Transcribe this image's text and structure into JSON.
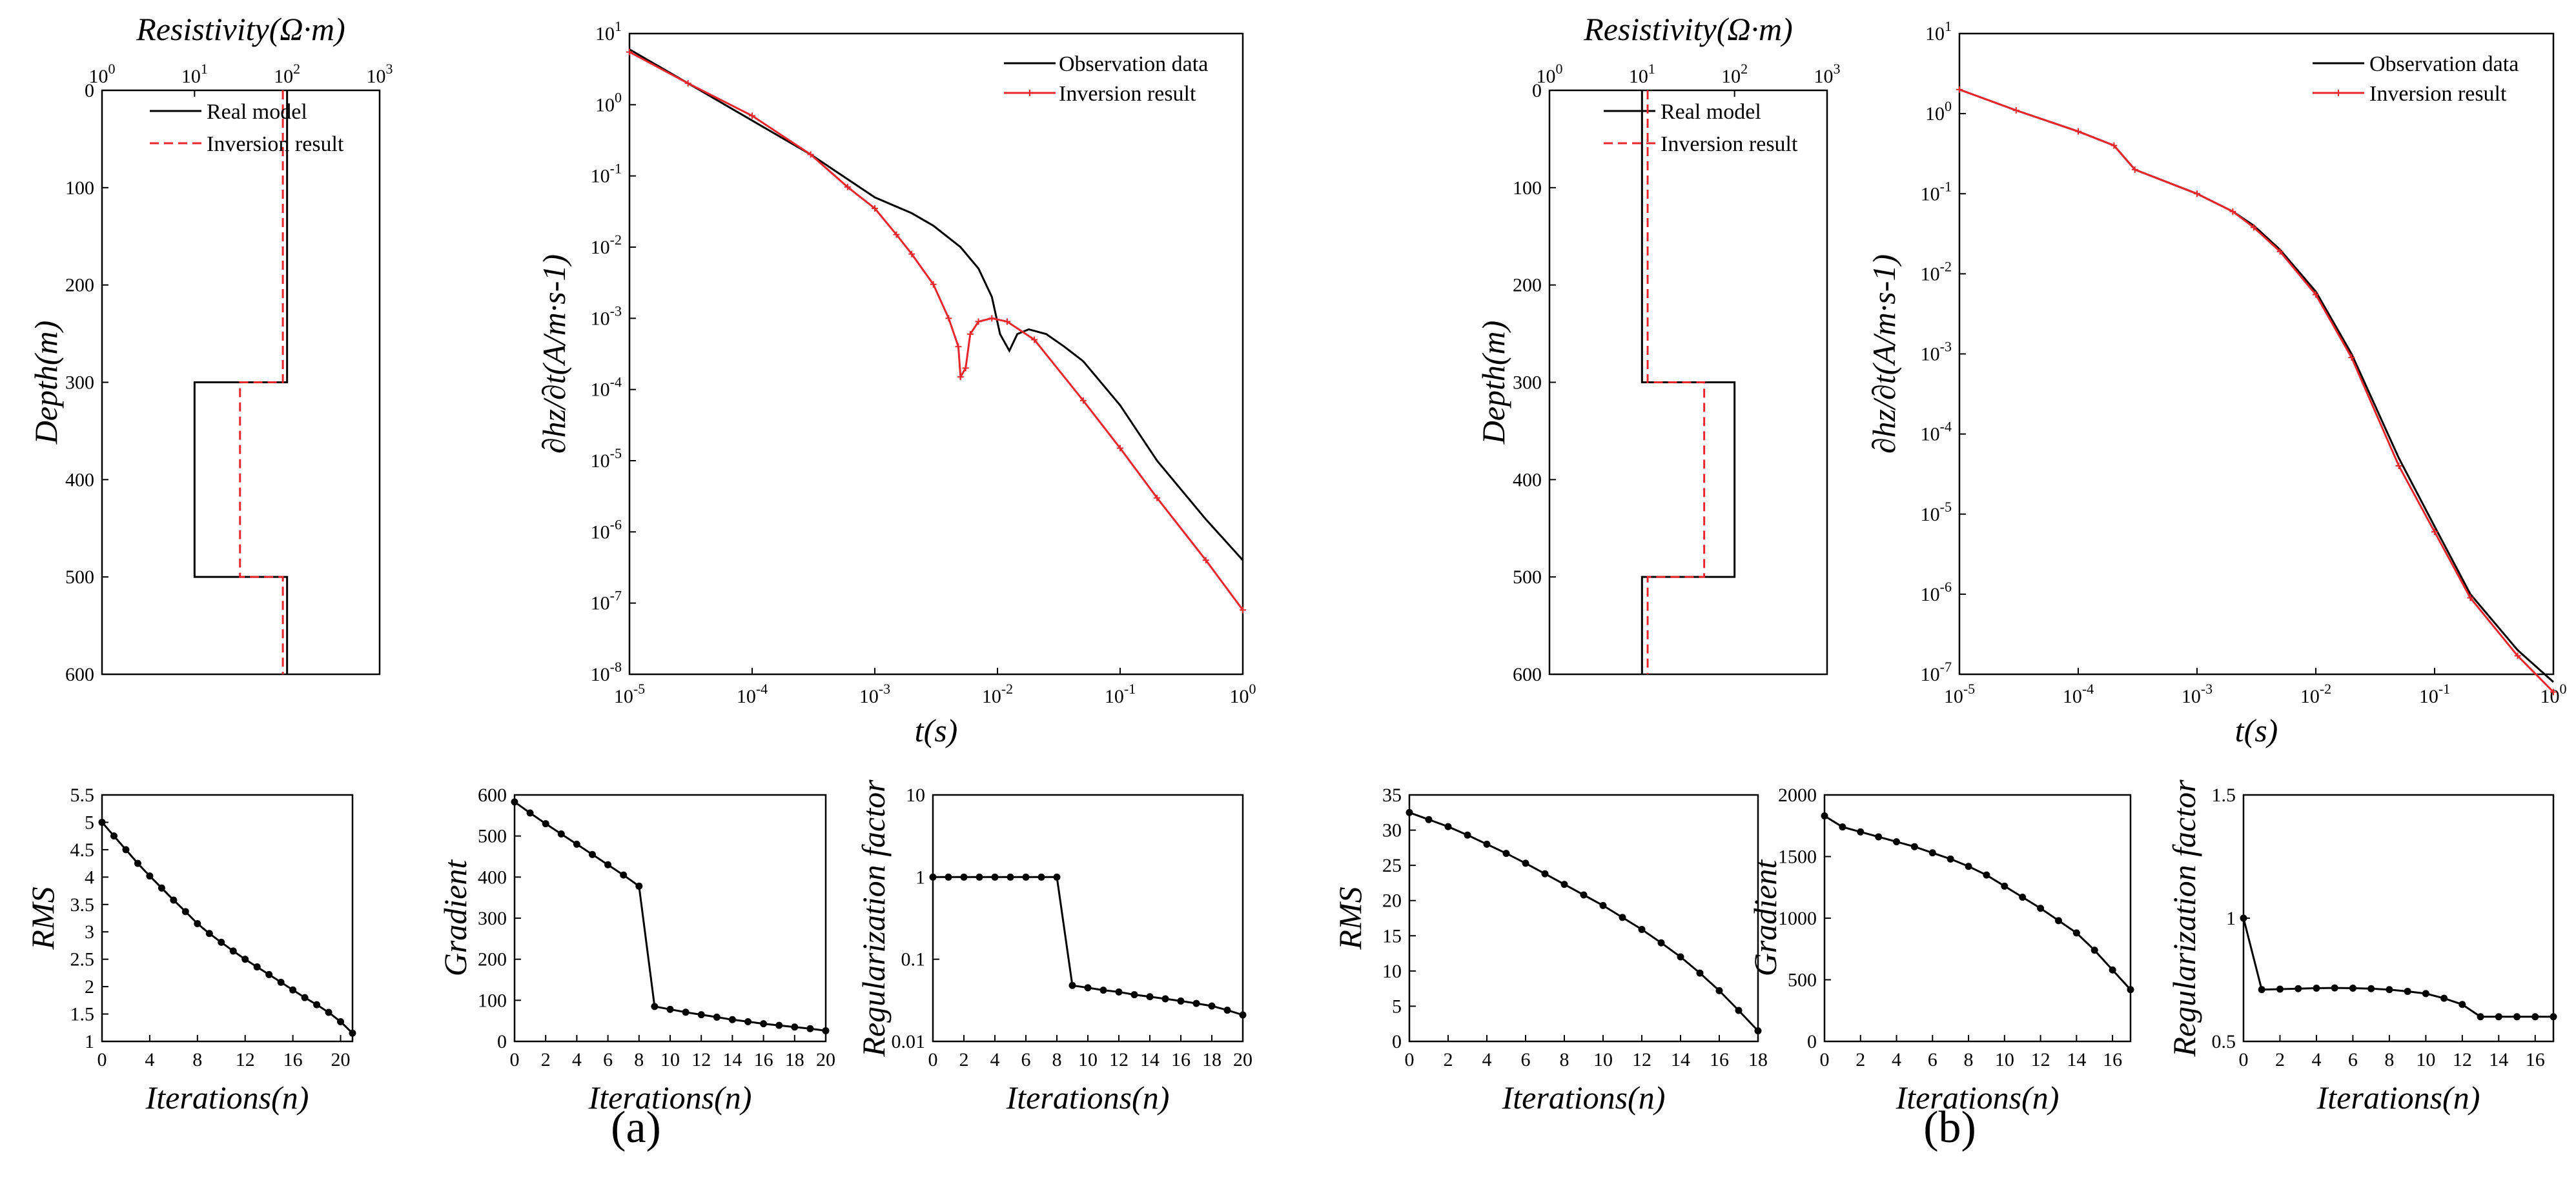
{
  "figure_labels": {
    "a": "(a)",
    "b": "(b)"
  },
  "axis_labels": {
    "resistivity": "Resistivity(Ω·m)",
    "depth": "Depth(m)",
    "dhz": "∂hz/∂t(A/m·s-1)",
    "time": "t(s)",
    "rms": "RMS",
    "gradient": "Gradient",
    "regularization": "Regularization factor",
    "iterations": "Iterations(n)"
  },
  "legends": {
    "real_model": "Real model",
    "inversion_result": "Inversion result",
    "observation_data": "Observation data"
  },
  "colors": {
    "observed": "#000000",
    "inverted": "#e8262c",
    "marker": "#000000"
  },
  "chart_data": [
    {
      "id": "a_model",
      "panel": "a",
      "type": "line",
      "title": "",
      "xlabel": "Resistivity(Ω·m)",
      "ylabel": "Depth(m)",
      "xscale": "log",
      "xlim": [
        1,
        1000
      ],
      "ylim": [
        0,
        600
      ],
      "y_inverted": true,
      "xtick_labels": [
        "10^0",
        "10^1",
        "10^2",
        "10^3"
      ],
      "ytick_labels": [
        "0",
        "100",
        "200",
        "300",
        "400",
        "500",
        "600"
      ],
      "legend_position": "top-left",
      "series": [
        {
          "name": "Real model",
          "style": "solid",
          "steps": [
            {
              "depth_from": 0,
              "depth_to": 300,
              "resistivity": 100
            },
            {
              "depth_from": 300,
              "depth_to": 500,
              "resistivity": 10
            },
            {
              "depth_from": 500,
              "depth_to": 600,
              "resistivity": 100
            }
          ]
        },
        {
          "name": "Inversion result",
          "style": "dashed",
          "steps": [
            {
              "depth_from": 0,
              "depth_to": 300,
              "resistivity": 90
            },
            {
              "depth_from": 300,
              "depth_to": 500,
              "resistivity": 31
            },
            {
              "depth_from": 500,
              "depth_to": 600,
              "resistivity": 90
            }
          ]
        }
      ]
    },
    {
      "id": "a_response",
      "panel": "a",
      "type": "line",
      "title": "",
      "xlabel": "t(s)",
      "ylabel": "∂hz/∂t(A/m·s-1)",
      "xscale": "log",
      "yscale": "log",
      "xlim": [
        1e-05,
        1
      ],
      "ylim": [
        1e-08,
        10
      ],
      "xtick_labels": [
        "10^-5",
        "10^-4",
        "10^-3",
        "10^-2",
        "10^-1",
        "10^0"
      ],
      "ytick_labels": [
        "10^-8",
        "10^-7",
        "10^-6",
        "10^-5",
        "10^-4",
        "10^-3",
        "10^-2",
        "10^-1",
        "10^0",
        "10^1"
      ],
      "legend_position": "top-right",
      "series": [
        {
          "name": "Observation data",
          "style": "solid",
          "markers": false,
          "x": [
            1e-05,
            3e-05,
            0.0001,
            0.0003,
            0.001,
            0.002,
            0.003,
            0.005,
            0.007,
            0.009,
            0.0105,
            0.0125,
            0.0145,
            0.018,
            0.025,
            0.035,
            0.05,
            0.1,
            0.2,
            0.5,
            1
          ],
          "y": [
            6,
            2,
            0.6,
            0.2,
            0.05,
            0.03,
            0.02,
            0.01,
            0.005,
            0.002,
            0.0006,
            0.00035,
            0.0006,
            0.0007,
            0.0006,
            0.0004,
            0.00025,
            6e-05,
            1e-05,
            1.5e-06,
            4e-07
          ]
        },
        {
          "name": "Inversion result",
          "style": "solid",
          "markers": true,
          "x": [
            1e-05,
            3e-05,
            0.0001,
            0.0003,
            0.0006,
            0.001,
            0.0015,
            0.002,
            0.003,
            0.004,
            0.0048,
            0.005,
            0.0055,
            0.006,
            0.007,
            0.009,
            0.012,
            0.02,
            0.05,
            0.1,
            0.2,
            0.5,
            1
          ],
          "y": [
            5.5,
            2,
            0.7,
            0.2,
            0.07,
            0.035,
            0.015,
            0.008,
            0.003,
            0.001,
            0.0004,
            0.00015,
            0.0002,
            0.0006,
            0.0009,
            0.001,
            0.0009,
            0.0005,
            7e-05,
            1.5e-05,
            3e-06,
            4e-07,
            8e-08
          ]
        }
      ]
    },
    {
      "id": "a_rms",
      "panel": "a",
      "type": "line",
      "xlabel": "Iterations(n)",
      "ylabel": "RMS",
      "xlim": [
        0,
        21
      ],
      "ylim": [
        1,
        5.5
      ],
      "xtick_labels": [
        "0",
        "4",
        "8",
        "12",
        "16",
        "20"
      ],
      "ytick_labels": [
        "1",
        "1.5",
        "2",
        "2.5",
        "3",
        "3.5",
        "4",
        "4.5",
        "5",
        "5.5"
      ],
      "series": [
        {
          "name": "RMS",
          "markers": true,
          "x": [
            0,
            1,
            2,
            3,
            4,
            5,
            6,
            7,
            8,
            9,
            10,
            11,
            12,
            13,
            14,
            15,
            16,
            17,
            18,
            19,
            20,
            21
          ],
          "y": [
            5.0,
            4.75,
            4.5,
            4.25,
            4.02,
            3.8,
            3.58,
            3.37,
            3.15,
            2.97,
            2.81,
            2.65,
            2.5,
            2.36,
            2.22,
            2.08,
            1.94,
            1.8,
            1.67,
            1.53,
            1.36,
            1.15
          ]
        }
      ]
    },
    {
      "id": "a_gradient",
      "panel": "a",
      "type": "line",
      "xlabel": "Iterations(n)",
      "ylabel": "Gradient",
      "xlim": [
        0,
        20
      ],
      "ylim": [
        0,
        600
      ],
      "xtick_labels": [
        "0",
        "2",
        "4",
        "6",
        "8",
        "10",
        "12",
        "14",
        "16",
        "18",
        "20"
      ],
      "ytick_labels": [
        "0",
        "100",
        "200",
        "300",
        "400",
        "500",
        "600"
      ],
      "series": [
        {
          "name": "Gradient",
          "markers": true,
          "x": [
            0,
            1,
            2,
            3,
            4,
            5,
            6,
            7,
            8,
            9,
            10,
            11,
            12,
            13,
            14,
            15,
            16,
            17,
            18,
            19,
            20
          ],
          "y": [
            583,
            556,
            530,
            505,
            480,
            455,
            430,
            405,
            378,
            85,
            78,
            71,
            65,
            59,
            53,
            48,
            43,
            39,
            35,
            31,
            26
          ]
        }
      ]
    },
    {
      "id": "a_regularization",
      "panel": "a",
      "type": "line",
      "xlabel": "Iterations(n)",
      "ylabel": "Regularization factor",
      "yscale": "log",
      "xlim": [
        0,
        20
      ],
      "ylim": [
        0.01,
        10
      ],
      "xtick_labels": [
        "0",
        "2",
        "4",
        "6",
        "8",
        "10",
        "12",
        "14",
        "16",
        "18",
        "20"
      ],
      "ytick_labels": [
        "0.01",
        "0.1",
        "1",
        "10"
      ],
      "series": [
        {
          "name": "Regularization factor",
          "markers": true,
          "x": [
            0,
            1,
            2,
            3,
            4,
            5,
            6,
            7,
            8,
            9,
            10,
            11,
            12,
            13,
            14,
            15,
            16,
            17,
            18,
            19,
            20
          ],
          "y": [
            1,
            1,
            1,
            1,
            1,
            1,
            1,
            1,
            1,
            0.048,
            0.045,
            0.042,
            0.04,
            0.037,
            0.035,
            0.033,
            0.031,
            0.029,
            0.027,
            0.024,
            0.021
          ]
        }
      ]
    },
    {
      "id": "b_model",
      "panel": "b",
      "type": "line",
      "title": "",
      "xlabel": "Resistivity(Ω·m)",
      "ylabel": "Depth(m)",
      "xscale": "log",
      "xlim": [
        1,
        1000
      ],
      "ylim": [
        0,
        600
      ],
      "y_inverted": true,
      "xtick_labels": [
        "10^0",
        "10^1",
        "10^2",
        "10^3"
      ],
      "ytick_labels": [
        "0",
        "100",
        "200",
        "300",
        "400",
        "500",
        "600"
      ],
      "legend_position": "top-right",
      "series": [
        {
          "name": "Real model",
          "style": "solid",
          "steps": [
            {
              "depth_from": 0,
              "depth_to": 300,
              "resistivity": 10
            },
            {
              "depth_from": 300,
              "depth_to": 500,
              "resistivity": 100
            },
            {
              "depth_from": 500,
              "depth_to": 600,
              "resistivity": 10
            }
          ]
        },
        {
          "name": "Inversion result",
          "style": "dashed",
          "steps": [
            {
              "depth_from": 0,
              "depth_to": 300,
              "resistivity": 11.5
            },
            {
              "depth_from": 300,
              "depth_to": 500,
              "resistivity": 47
            },
            {
              "depth_from": 500,
              "depth_to": 600,
              "resistivity": 11.5
            }
          ]
        }
      ]
    },
    {
      "id": "b_response",
      "panel": "b",
      "type": "line",
      "title": "",
      "xlabel": "t(s)",
      "ylabel": "∂hz/∂t(A/m·s-1)",
      "xscale": "log",
      "yscale": "log",
      "xlim": [
        1e-05,
        1
      ],
      "ylim": [
        1e-07,
        10
      ],
      "xtick_labels": [
        "10^-5",
        "10^-4",
        "10^-3",
        "10^-2",
        "10^-1",
        "10^0"
      ],
      "ytick_labels": [
        "10^-7",
        "10^-6",
        "10^-5",
        "10^-4",
        "10^-3",
        "10^-2",
        "10^-1",
        "10^0",
        "10^1"
      ],
      "legend_position": "top-right",
      "series": [
        {
          "name": "Observation data",
          "style": "solid",
          "markers": false,
          "x": [
            1e-05,
            3e-05,
            0.0001,
            0.0002,
            0.0003,
            0.001,
            0.002,
            0.003,
            0.005,
            0.01,
            0.02,
            0.05,
            0.1,
            0.2,
            0.5,
            1
          ],
          "y": [
            2,
            1.1,
            0.6,
            0.4,
            0.2,
            0.1,
            0.06,
            0.04,
            0.02,
            0.006,
            0.001,
            5e-05,
            7e-06,
            1e-06,
            2e-07,
            8e-08
          ]
        },
        {
          "name": "Inversion result",
          "style": "solid",
          "markers": true,
          "x": [
            1e-05,
            3e-05,
            0.0001,
            0.0002,
            0.0003,
            0.001,
            0.002,
            0.003,
            0.005,
            0.01,
            0.02,
            0.05,
            0.1,
            0.2,
            0.5,
            1
          ],
          "y": [
            2,
            1.1,
            0.6,
            0.4,
            0.2,
            0.1,
            0.06,
            0.038,
            0.019,
            0.0055,
            0.0009,
            4e-05,
            6e-06,
            9e-07,
            1.7e-07,
            6e-08
          ]
        }
      ]
    },
    {
      "id": "b_rms",
      "panel": "b",
      "type": "line",
      "xlabel": "Iterations(n)",
      "ylabel": "RMS",
      "xlim": [
        0,
        18
      ],
      "ylim": [
        0,
        35
      ],
      "xtick_labels": [
        "0",
        "2",
        "4",
        "6",
        "8",
        "10",
        "12",
        "14",
        "16",
        "18"
      ],
      "ytick_labels": [
        "0",
        "5",
        "10",
        "15",
        "20",
        "25",
        "30",
        "35"
      ],
      "series": [
        {
          "name": "RMS",
          "markers": true,
          "x": [
            0,
            1,
            2,
            3,
            4,
            5,
            6,
            7,
            8,
            9,
            10,
            11,
            12,
            13,
            14,
            15,
            16,
            17,
            18
          ],
          "y": [
            32.5,
            31.5,
            30.5,
            29.3,
            28,
            26.7,
            25.3,
            23.8,
            22.3,
            20.8,
            19.3,
            17.6,
            15.9,
            14,
            12,
            9.7,
            7.2,
            4.4,
            1.5
          ]
        }
      ]
    },
    {
      "id": "b_gradient",
      "panel": "b",
      "type": "line",
      "xlabel": "Iterations(n)",
      "ylabel": "Gradient",
      "xlim": [
        0,
        17
      ],
      "ylim": [
        0,
        2000
      ],
      "xtick_labels": [
        "0",
        "2",
        "4",
        "6",
        "8",
        "10",
        "12",
        "14",
        "16"
      ],
      "ytick_labels": [
        "0",
        "500",
        "1000",
        "1500",
        "2000"
      ],
      "series": [
        {
          "name": "Gradient",
          "markers": true,
          "x": [
            0,
            1,
            2,
            3,
            4,
            5,
            6,
            7,
            8,
            9,
            10,
            11,
            12,
            13,
            14,
            15,
            16,
            17
          ],
          "y": [
            1830,
            1740,
            1700,
            1660,
            1620,
            1580,
            1530,
            1480,
            1420,
            1350,
            1260,
            1170,
            1080,
            980,
            880,
            740,
            580,
            420
          ]
        }
      ]
    },
    {
      "id": "b_regularization",
      "panel": "b",
      "type": "line",
      "xlabel": "Iterations(n)",
      "ylabel": "Regularization factor",
      "xlim": [
        0,
        17
      ],
      "ylim": [
        0.5,
        1.5
      ],
      "xtick_labels": [
        "0",
        "2",
        "4",
        "6",
        "8",
        "10",
        "12",
        "14",
        "16"
      ],
      "ytick_labels": [
        "0.5",
        "1",
        "1.5"
      ],
      "series": [
        {
          "name": "Regularization factor",
          "markers": true,
          "x": [
            0,
            1,
            2,
            3,
            4,
            5,
            6,
            7,
            8,
            9,
            10,
            11,
            12,
            13,
            14,
            15,
            16,
            17
          ],
          "y": [
            1.0,
            0.71,
            0.712,
            0.714,
            0.716,
            0.717,
            0.716,
            0.714,
            0.71,
            0.703,
            0.694,
            0.675,
            0.65,
            0.6,
            0.6,
            0.6,
            0.6,
            0.6
          ]
        }
      ]
    }
  ]
}
